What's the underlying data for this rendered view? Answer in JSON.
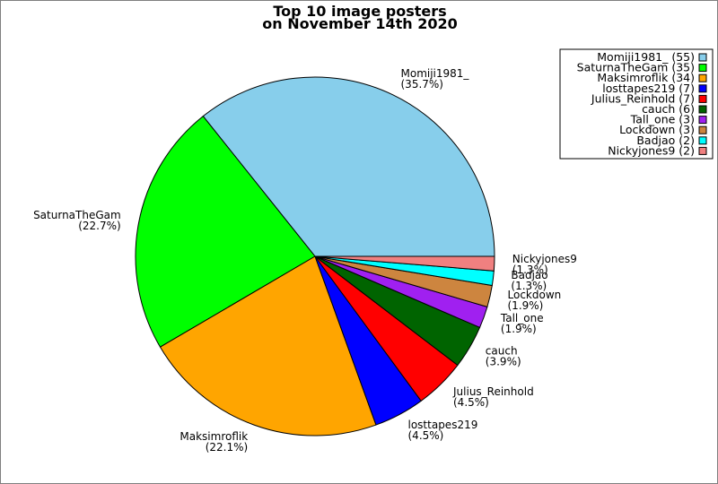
{
  "chart_data": {
    "type": "pie",
    "title_lines": [
      "Top 10 image posters",
      "on November 14th 2020"
    ],
    "legend_position": "top-right",
    "slices": [
      {
        "name": "Momiji1981_",
        "value": 55,
        "percent": "(35.7%)",
        "legend": "Momiji1981_ (55)",
        "color": "#87ceeb"
      },
      {
        "name": "SaturnaTheGam",
        "value": 35,
        "percent": "(22.7%)",
        "legend": "SaturnaTheGam (35)",
        "color": "#00ff00"
      },
      {
        "name": "Maksimroflik",
        "value": 34,
        "percent": "(22.1%)",
        "legend": "Maksimroflik (34)",
        "color": "#ffa500"
      },
      {
        "name": "losttapes219",
        "value": 7,
        "percent": "(4.5%)",
        "legend": "losttapes219 (7)",
        "color": "#0000ff"
      },
      {
        "name": "Julius_Reinhold",
        "value": 7,
        "percent": "(4.5%)",
        "legend": "Julius_Reinhold (7)",
        "color": "#ff0000"
      },
      {
        "name": "cauch",
        "value": 6,
        "percent": "(3.9%)",
        "legend": "cauch (6)",
        "color": "#006400"
      },
      {
        "name": "Tall_one",
        "value": 3,
        "percent": "(1.9%)",
        "legend": "Tall_one (3)",
        "color": "#a020f0"
      },
      {
        "name": "Lockdown",
        "value": 3,
        "percent": "(1.9%)",
        "legend": "Lockdown (3)",
        "color": "#cd853f"
      },
      {
        "name": "Badjao",
        "value": 2,
        "percent": "(1.3%)",
        "legend": "Badjao (2)",
        "color": "#00ffff"
      },
      {
        "name": "Nickyjones9",
        "value": 2,
        "percent": "(1.3%)",
        "legend": "Nickyjones9 (2)",
        "color": "#f08080"
      }
    ]
  }
}
